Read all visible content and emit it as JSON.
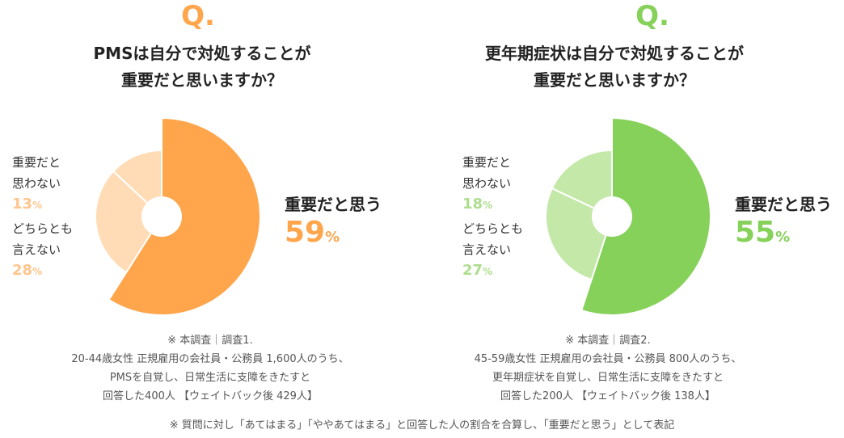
{
  "colors": {
    "left_main": "#FFA64D",
    "left_light": "#FFDCB5",
    "right_main": "#86D15A",
    "right_light": "#C3E8A8",
    "left_text_light": "#FFC58C",
    "right_text_light": "#AEDD8F"
  },
  "footnote": "※ 質問に対し「あてはまる」「ややあてはまる」と回答した人の割合を合算し、「重要だと思う」として表記",
  "chart_data": [
    {
      "type": "pie",
      "q_mark": "Q.",
      "title_lines": [
        "PMSは自分で対処することが",
        "重要だと思いますか？"
      ],
      "slices": [
        {
          "label": "重要だと思う",
          "value": 59,
          "display": "59"
        },
        {
          "label": "どちらとも言えない",
          "value": 28,
          "display": "28"
        },
        {
          "label": "重要だと思わない",
          "value": 13,
          "display": "13"
        }
      ],
      "label_lines": {
        "main": "重要だと思う",
        "mid": [
          "どちらとも",
          "言えない"
        ],
        "low": [
          "重要だと",
          "思わない"
        ]
      },
      "unit": "%",
      "note_lines": [
        "※ 本調査｜調査1.",
        "20-44歳女性 正規雇用の会社員・公務員 1,600人のうち、",
        "PMSを自覚し、日常生活に支障をきたすと",
        "回答した400人 【ウェイトバック後 429人】"
      ]
    },
    {
      "type": "pie",
      "q_mark": "Q.",
      "title_lines": [
        "更年期症状は自分で対処することが",
        "重要だと思いますか？"
      ],
      "slices": [
        {
          "label": "重要だと思う",
          "value": 55,
          "display": "55"
        },
        {
          "label": "どちらとも言えない",
          "value": 27,
          "display": "27"
        },
        {
          "label": "重要だと思わない",
          "value": 18,
          "display": "18"
        }
      ],
      "label_lines": {
        "main": "重要だと思う",
        "mid": [
          "どちらとも",
          "言えない"
        ],
        "low": [
          "重要だと",
          "思わない"
        ]
      },
      "unit": "%",
      "note_lines": [
        "※ 本調査｜調査2.",
        "45-59歳女性 正規雇用の会社員・公務員 800人のうち、",
        "更年期症状を自覚し、日常生活に支障をきたすと",
        "回答した200人 【ウェイトバック後 138人】"
      ]
    }
  ]
}
